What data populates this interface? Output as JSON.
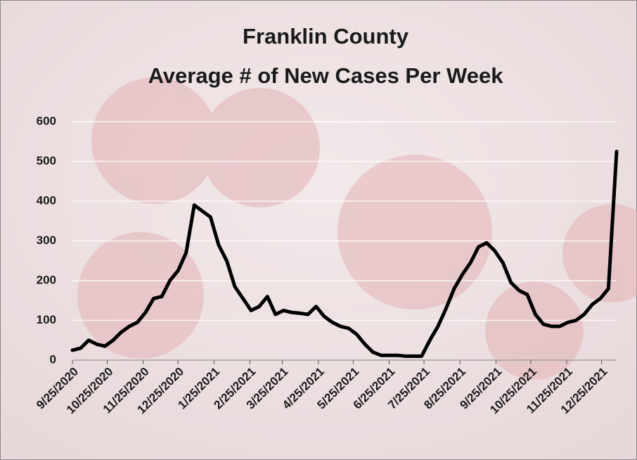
{
  "chart_data": {
    "type": "line",
    "title": [
      "Franklin County",
      "Average # of New Cases Per Week"
    ],
    "x": [
      "9/25/2020",
      "10/2/2020",
      "10/9/2020",
      "10/16/2020",
      "10/23/2020",
      "10/30/2020",
      "11/6/2020",
      "11/13/2020",
      "11/20/2020",
      "11/27/2020",
      "12/4/2020",
      "12/11/2020",
      "12/18/2020",
      "12/25/2020",
      "1/1/2021",
      "1/8/2021",
      "1/15/2021",
      "1/22/2021",
      "1/29/2021",
      "2/5/2021",
      "2/12/2021",
      "2/19/2021",
      "2/26/2021",
      "3/5/2021",
      "3/12/2021",
      "3/19/2021",
      "3/26/2021",
      "4/2/2021",
      "4/9/2021",
      "4/16/2021",
      "4/23/2021",
      "4/30/2021",
      "5/7/2021",
      "5/14/2021",
      "5/21/2021",
      "5/28/2021",
      "6/4/2021",
      "6/11/2021",
      "6/18/2021",
      "6/25/2021",
      "7/2/2021",
      "7/9/2021",
      "7/16/2021",
      "7/23/2021",
      "7/30/2021",
      "8/6/2021",
      "8/13/2021",
      "8/20/2021",
      "8/27/2021",
      "9/3/2021",
      "9/10/2021",
      "9/17/2021",
      "9/24/2021",
      "10/1/2021",
      "10/8/2021",
      "10/15/2021",
      "10/22/2021",
      "10/29/2021",
      "11/5/2021",
      "11/12/2021",
      "11/19/2021",
      "11/26/2021",
      "12/3/2021",
      "12/10/2021",
      "12/17/2021",
      "12/24/2021",
      "12/31/2021",
      "1/7/2022"
    ],
    "series": [
      {
        "color": "#000000",
        "values": [
          25,
          30,
          50,
          40,
          35,
          50,
          70,
          85,
          95,
          120,
          155,
          160,
          200,
          225,
          270,
          390,
          375,
          360,
          290,
          250,
          185,
          155,
          125,
          135,
          160,
          115,
          125,
          120,
          118,
          115,
          135,
          110,
          95,
          85,
          80,
          65,
          40,
          20,
          12,
          12,
          12,
          10,
          10,
          10,
          50,
          85,
          130,
          180,
          215,
          245,
          285,
          295,
          275,
          245,
          195,
          175,
          165,
          115,
          90,
          85,
          85,
          95,
          100,
          115,
          140,
          155,
          180,
          525
        ]
      }
    ],
    "xlim": [
      "9/25/2020",
      "1/7/2022"
    ],
    "xticks": [
      "9/25/2020",
      "10/25/2020",
      "11/25/2020",
      "12/25/2020",
      "1/25/2021",
      "2/25/2021",
      "3/25/2021",
      "4/25/2021",
      "5/25/2021",
      "6/25/2021",
      "7/25/2021",
      "8/25/2021",
      "9/25/2021",
      "10/25/2021",
      "11/25/2021",
      "12/25/2021"
    ],
    "ylim": [
      0,
      600
    ],
    "yticks": [
      0,
      100,
      200,
      300,
      400,
      500,
      600
    ],
    "grid": true
  }
}
